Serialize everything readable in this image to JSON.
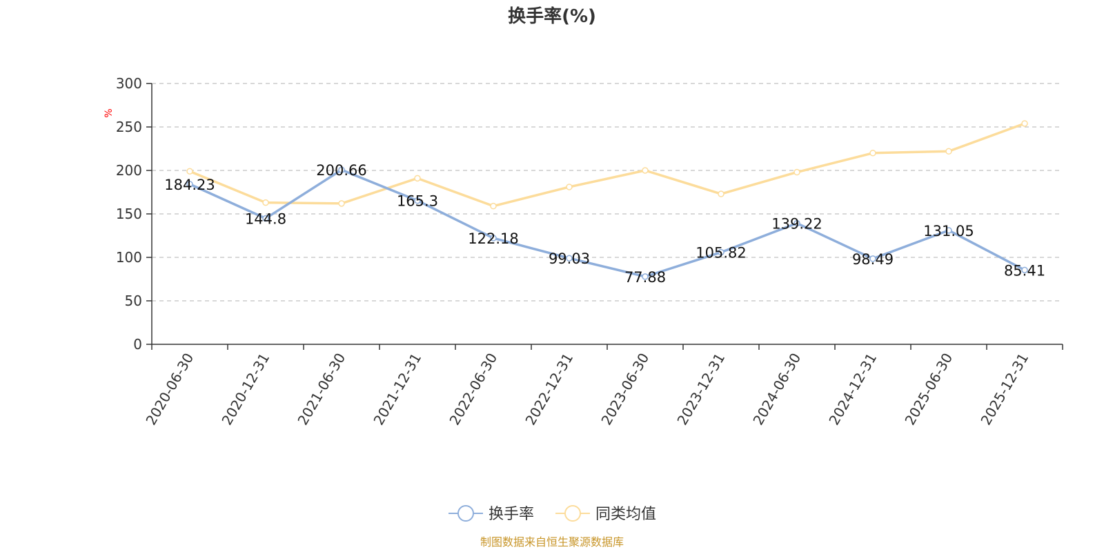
{
  "chart_data": {
    "type": "line",
    "title": "换手率(%)",
    "ylabel": "%",
    "xlabel": "",
    "ylim": [
      0,
      300
    ],
    "yticks": [
      0,
      50,
      100,
      150,
      200,
      250,
      300
    ],
    "categories": [
      "2020-06-30",
      "2020-12-31",
      "2021-06-30",
      "2021-12-31",
      "2022-06-30",
      "2022-12-31",
      "2023-06-30",
      "2023-12-31",
      "2024-06-30",
      "2024-12-31",
      "2025-06-30",
      "2025-12-31"
    ],
    "series": [
      {
        "name": "换手率",
        "color": "#8eaedb",
        "values": [
          184.23,
          144.8,
          200.66,
          165.3,
          122.18,
          99.03,
          77.88,
          105.82,
          139.22,
          98.49,
          131.05,
          85.41
        ],
        "labels": [
          "184.23",
          "144.8",
          "200.66",
          "165.3",
          "122.18",
          "99.03",
          "77.88",
          "105.82",
          "139.22",
          "98.49",
          "131.05",
          "85.41"
        ]
      },
      {
        "name": "同类均值",
        "color": "#fcdc9b",
        "values": [
          199,
          163,
          162,
          191,
          159,
          181,
          200,
          173,
          198,
          220,
          222,
          254
        ]
      }
    ],
    "grid": true,
    "legend_position": "bottom-center"
  },
  "source": "制图数据来自恒生聚源数据库",
  "colors": {
    "axis": "#333333",
    "grid": "#cccccc",
    "ylabel": "#ff0000",
    "source": "#c8962a"
  }
}
